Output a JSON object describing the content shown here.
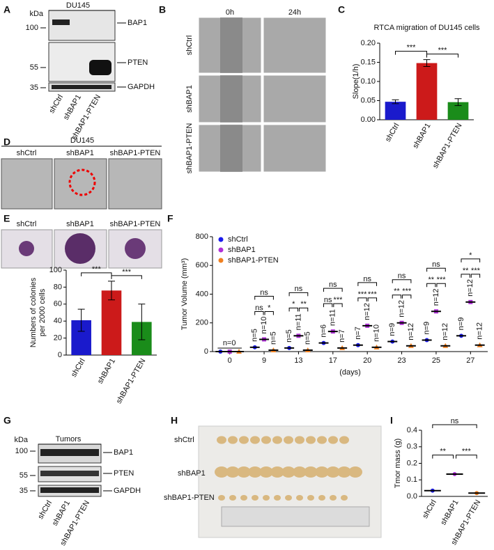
{
  "panel_letters": [
    "A",
    "B",
    "C",
    "D",
    "E",
    "F",
    "G",
    "H",
    "I"
  ],
  "blot_A": {
    "header": "DU145",
    "kda": "kDa",
    "markers": [
      "100",
      "55",
      "35"
    ],
    "bands": [
      "BAP1",
      "PTEN",
      "GAPDH"
    ],
    "lanes": [
      "shCtrl",
      "shBAP1",
      "shBAP1-PTEN"
    ]
  },
  "panel_B": {
    "times": [
      "0h",
      "24h"
    ],
    "rows": [
      "shCtrl",
      "shBAP1",
      "shBAP1-PTEN"
    ]
  },
  "panel_D": {
    "title": "DU145",
    "columns": [
      "shCtrl",
      "shBAP1",
      "shBAP1-PTEN"
    ]
  },
  "panel_E": {
    "columns": [
      "shCtrl",
      "shBAP1",
      "shBAP1-PTEN"
    ]
  },
  "blot_G": {
    "header": "Tumors",
    "kda": "kDa",
    "markers": [
      "100",
      "55",
      "35"
    ],
    "bands": [
      "BAP1",
      "PTEN",
      "GAPDH"
    ],
    "lanes": [
      "shCtrl",
      "shBAP1",
      "shBAP1-PTEN"
    ]
  },
  "panel_H": {
    "rows": [
      "shCtrl",
      "shBAP1",
      "shBAP1-PTEN"
    ]
  },
  "chart_data": [
    {
      "type": "bar",
      "title": "RTCA migration of DU145 cells",
      "ylabel": [
        "Slope(1/h)"
      ],
      "categories": [
        "shCtrl",
        "shBAP1",
        "shBAP1-PTEN"
      ],
      "values": [
        0.047,
        0.148,
        0.046
      ],
      "errors": [
        0.005,
        0.009,
        0.009
      ],
      "colors": [
        "#1a1acc",
        "#cc1a1a",
        "#1a8c1a"
      ],
      "ylim": [
        0,
        0.2
      ],
      "yticks": [
        {
          "value": 0,
          "label": "0.00"
        },
        {
          "value": 0.05,
          "label": "0.05"
        },
        {
          "value": 0.1,
          "label": "0.10"
        },
        {
          "value": 0.15,
          "label": "0.15"
        },
        {
          "value": 0.2,
          "label": "0.20"
        }
      ],
      "annotations": [
        "***",
        "***"
      ]
    },
    {
      "type": "bar",
      "ylabel": [
        "Numbers of colonies",
        "per 2000 cells"
      ],
      "categories": [
        "shCtrl",
        "shBAP1",
        "shBAP1-PTEN"
      ],
      "values": [
        41,
        76,
        39
      ],
      "errors": [
        13,
        11,
        21
      ],
      "colors": [
        "#1a1acc",
        "#cc1a1a",
        "#1a8c1a"
      ],
      "ylim": [
        0,
        100
      ],
      "yticks": [
        0,
        20,
        40,
        60,
        80,
        100
      ],
      "annotations": [
        "***",
        "***"
      ]
    },
    {
      "type": "strip",
      "ylabel": [
        "Tumor Volume (mm³)"
      ],
      "xlabel": "(days)",
      "categories": [
        "0",
        "9",
        "13",
        "17",
        "20",
        "23",
        "25",
        "27"
      ],
      "series": [
        {
          "name": "shCtrl",
          "color": "#1a1aee",
          "values": [
            0,
            30,
            25,
            60,
            45,
            70,
            80,
            110
          ]
        },
        {
          "name": "shBAP1",
          "color": "#b030d8",
          "values": [
            0,
            85,
            110,
            140,
            180,
            200,
            280,
            345
          ]
        },
        {
          "name": "shBAP1-PTEN",
          "color": "#f08020",
          "values": [
            0,
            10,
            10,
            25,
            30,
            40,
            40,
            45
          ]
        }
      ],
      "ylim": [
        0,
        800
      ],
      "yticks": [
        0,
        200,
        400,
        600,
        800
      ],
      "n_labels": [
        [
          "n=0"
        ],
        [
          "n=5",
          "n=10",
          "n=5"
        ],
        [
          "n=5",
          "n=11",
          "n=5"
        ],
        [
          "n=6",
          "n=11",
          "n=7"
        ],
        [
          "n=7",
          "n=12",
          "n=10"
        ],
        [
          "n=9",
          "n=12",
          "n=12"
        ],
        [
          "n=9",
          "n=12",
          "n=12"
        ],
        [
          "n=9",
          "n=12",
          "n=12"
        ]
      ],
      "sig_labels": [
        [],
        [
          "ns",
          "ns",
          "*"
        ],
        [
          "ns",
          "*",
          "**"
        ],
        [
          "ns",
          "ns",
          "***"
        ],
        [
          "ns",
          "***",
          "***"
        ],
        [
          "ns",
          "**",
          "***"
        ],
        [
          "ns",
          "**",
          "***"
        ],
        [
          "*",
          "**",
          "***"
        ]
      ]
    },
    {
      "type": "dot",
      "ylabel": [
        "Tmor mass (g)"
      ],
      "categories": [
        "shCtrl",
        "shBAP1",
        "shBAP1-PTEN"
      ],
      "values": [
        0.035,
        0.135,
        0.02
      ],
      "colors": [
        "#1a1aee",
        "#b030d8",
        "#f08020"
      ],
      "ylim": [
        0,
        0.4
      ],
      "yticks": [
        {
          "value": 0,
          "label": "0.0"
        },
        {
          "value": 0.1,
          "label": "0.1"
        },
        {
          "value": 0.2,
          "label": "0.2"
        },
        {
          "value": 0.3,
          "label": "0.3"
        },
        {
          "value": 0.4,
          "label": "0.4"
        }
      ],
      "annotations": [
        "ns",
        "**",
        "***"
      ]
    }
  ]
}
